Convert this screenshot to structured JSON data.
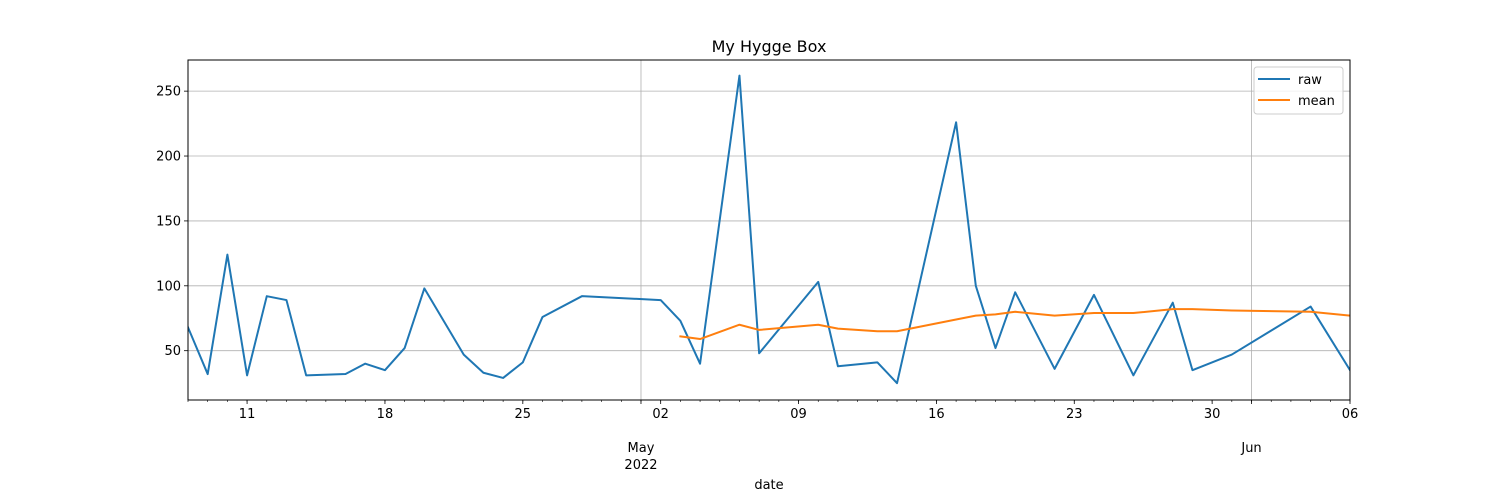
{
  "chart_data": {
    "type": "line",
    "title": "My Hygge Box",
    "xlabel": "date",
    "ylabel": "",
    "xlim": [
      "2022-04-08",
      "2022-06-06"
    ],
    "ylim": [
      12,
      274
    ],
    "grid": true,
    "legend_position": "top-right",
    "x_tick_labels": [
      {
        "date": "2022-04-11",
        "label": "11"
      },
      {
        "date": "2022-04-18",
        "label": "18"
      },
      {
        "date": "2022-04-25",
        "label": "25"
      },
      {
        "date": "2022-05-02",
        "label": "02"
      },
      {
        "date": "2022-05-09",
        "label": "09"
      },
      {
        "date": "2022-05-16",
        "label": "16"
      },
      {
        "date": "2022-05-23",
        "label": "23"
      },
      {
        "date": "2022-05-30",
        "label": "30"
      },
      {
        "date": "2022-06-06",
        "label": "06"
      }
    ],
    "x_major_labels": [
      {
        "date": "2022-05-01",
        "line1": "May",
        "line2": "2022"
      },
      {
        "date": "2022-06-01",
        "line1": "Jun",
        "line2": ""
      }
    ],
    "y_ticks": [
      50,
      100,
      150,
      200,
      250
    ],
    "series": [
      {
        "name": "raw",
        "color": "#1f77b4",
        "points": [
          {
            "x": "2022-04-08",
            "y": 68
          },
          {
            "x": "2022-04-09",
            "y": 32
          },
          {
            "x": "2022-04-10",
            "y": 124
          },
          {
            "x": "2022-04-11",
            "y": 31
          },
          {
            "x": "2022-04-12",
            "y": 92
          },
          {
            "x": "2022-04-13",
            "y": 89
          },
          {
            "x": "2022-04-14",
            "y": 31
          },
          {
            "x": "2022-04-16",
            "y": 32
          },
          {
            "x": "2022-04-17",
            "y": 40
          },
          {
            "x": "2022-04-18",
            "y": 35
          },
          {
            "x": "2022-04-19",
            "y": 52
          },
          {
            "x": "2022-04-20",
            "y": 98
          },
          {
            "x": "2022-04-22",
            "y": 47
          },
          {
            "x": "2022-04-23",
            "y": 33
          },
          {
            "x": "2022-04-24",
            "y": 29
          },
          {
            "x": "2022-04-25",
            "y": 41
          },
          {
            "x": "2022-04-26",
            "y": 76
          },
          {
            "x": "2022-04-28",
            "y": 92
          },
          {
            "x": "2022-05-02",
            "y": 89
          },
          {
            "x": "2022-05-03",
            "y": 73
          },
          {
            "x": "2022-05-04",
            "y": 40
          },
          {
            "x": "2022-05-06",
            "y": 262
          },
          {
            "x": "2022-05-07",
            "y": 48
          },
          {
            "x": "2022-05-10",
            "y": 103
          },
          {
            "x": "2022-05-11",
            "y": 38
          },
          {
            "x": "2022-05-13",
            "y": 41
          },
          {
            "x": "2022-05-14",
            "y": 25
          },
          {
            "x": "2022-05-17",
            "y": 226
          },
          {
            "x": "2022-05-18",
            "y": 100
          },
          {
            "x": "2022-05-19",
            "y": 52
          },
          {
            "x": "2022-05-20",
            "y": 95
          },
          {
            "x": "2022-05-22",
            "y": 36
          },
          {
            "x": "2022-05-24",
            "y": 93
          },
          {
            "x": "2022-05-26",
            "y": 31
          },
          {
            "x": "2022-05-28",
            "y": 87
          },
          {
            "x": "2022-05-29",
            "y": 35
          },
          {
            "x": "2022-05-31",
            "y": 47
          },
          {
            "x": "2022-06-04",
            "y": 84
          },
          {
            "x": "2022-06-06",
            "y": 35
          }
        ]
      },
      {
        "name": "mean",
        "color": "#ff7f0e",
        "points": [
          {
            "x": "2022-05-03",
            "y": 61
          },
          {
            "x": "2022-05-04",
            "y": 59
          },
          {
            "x": "2022-05-06",
            "y": 70
          },
          {
            "x": "2022-05-07",
            "y": 66
          },
          {
            "x": "2022-05-10",
            "y": 70
          },
          {
            "x": "2022-05-11",
            "y": 67
          },
          {
            "x": "2022-05-13",
            "y": 65
          },
          {
            "x": "2022-05-14",
            "y": 65
          },
          {
            "x": "2022-05-17",
            "y": 74
          },
          {
            "x": "2022-05-18",
            "y": 77
          },
          {
            "x": "2022-05-19",
            "y": 78
          },
          {
            "x": "2022-05-20",
            "y": 80
          },
          {
            "x": "2022-05-22",
            "y": 77
          },
          {
            "x": "2022-05-24",
            "y": 79
          },
          {
            "x": "2022-05-26",
            "y": 79
          },
          {
            "x": "2022-05-28",
            "y": 82
          },
          {
            "x": "2022-05-29",
            "y": 82
          },
          {
            "x": "2022-05-31",
            "y": 81
          },
          {
            "x": "2022-06-04",
            "y": 80
          },
          {
            "x": "2022-06-06",
            "y": 77
          }
        ]
      }
    ]
  }
}
